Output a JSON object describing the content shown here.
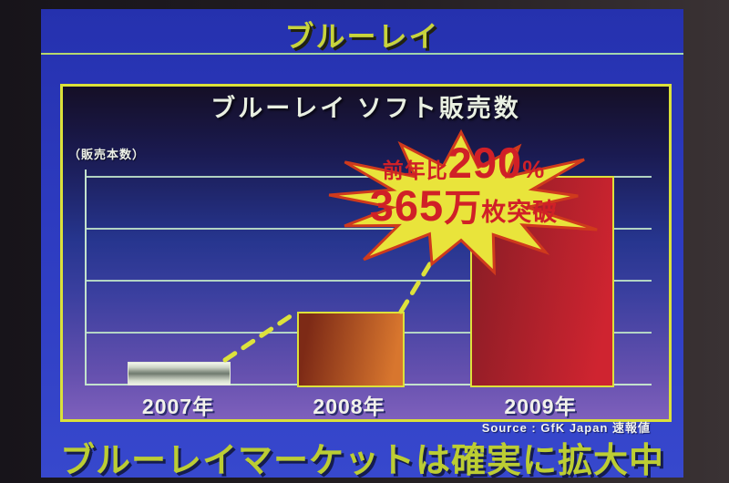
{
  "slide": {
    "title": "ブルーレイ",
    "headline": "ブルーレイマーケットは確実に拡大中",
    "source": "Source : GfK Japan 速報値"
  },
  "chart": {
    "title": "ブルーレイ ソフト販売数",
    "ylabel": "（販売本数）",
    "annotation": {
      "prefix": "前年比",
      "pct_value": "290",
      "pct_unit": "%",
      "vol_value": "365",
      "vol_unit": "万",
      "vol_suffix": "枚突破"
    }
  },
  "chart_data": {
    "type": "bar",
    "title": "ブルーレイ ソフト販売数",
    "ylabel": "（販売本数）",
    "categories": [
      "2007年",
      "2008年",
      "2009年"
    ],
    "values": [
      38,
      126,
      365
    ],
    "unit": "万枚",
    "ylim": [
      0,
      365
    ],
    "gridline_count": 4,
    "grid": "horizontal",
    "legend": "none",
    "annotations": [
      "前年比290%",
      "365万枚突破"
    ],
    "source": "Source : GfK Japan 速報値",
    "bars": [
      {
        "label": "2007年",
        "style": "silver",
        "from": "#e6ece0",
        "to": "#757d72",
        "border": "#e4eadb"
      },
      {
        "label": "2008年",
        "style": "gradient",
        "from": "#7d2a16",
        "to": "#d8762e",
        "border": "#dde13a"
      },
      {
        "label": "2009年",
        "style": "gradient",
        "from": "#8e1d26",
        "to": "#cf2430",
        "border": "#dde13a"
      }
    ]
  },
  "colors": {
    "slide_background": "#2d3bc0",
    "slide_title": "#c8d43c",
    "headline": "#bccd33",
    "box_border": "#dbe139",
    "grid": "#b9dcc6",
    "starburst_fill": "#e9e43b",
    "starburst_stroke": "#cf3a1c",
    "annotation_text": "#d02027",
    "trend_line": "#dde23c"
  }
}
